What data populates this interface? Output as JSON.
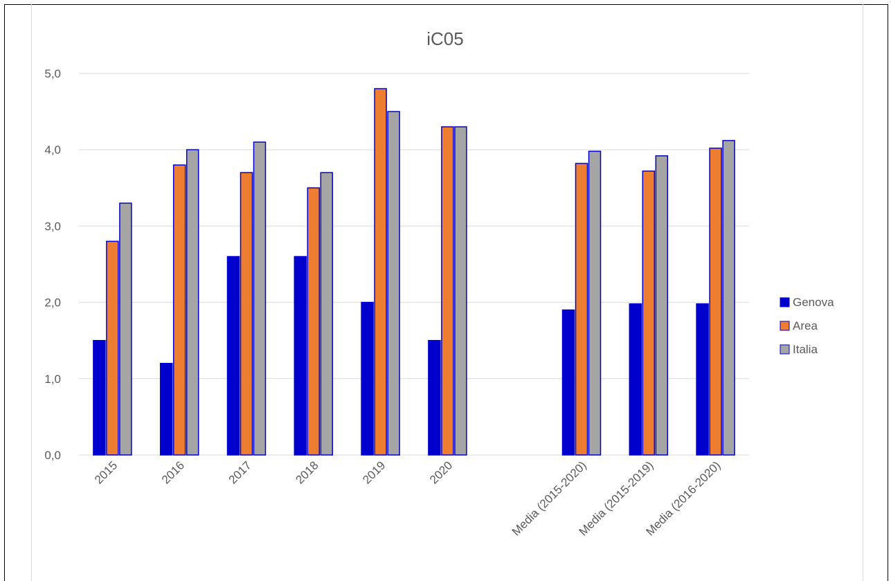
{
  "chart_data": {
    "type": "bar",
    "title": "iC05",
    "xlabel": "",
    "ylabel": "",
    "ylim": [
      0,
      5
    ],
    "yticks": [
      "0,0",
      "1,0",
      "2,0",
      "3,0",
      "4,0",
      "5,0"
    ],
    "grid": true,
    "legend_position": "right",
    "categories": [
      "2015",
      "2016",
      "2017",
      "2018",
      "2019",
      "2020",
      "",
      "Media (2015-2020)",
      "Media (2015-2019)",
      "Media (2016-2020)"
    ],
    "series": [
      {
        "name": "Genova",
        "color": "#0000cc",
        "values": [
          1.5,
          1.2,
          2.6,
          2.6,
          2.0,
          1.5,
          null,
          1.9,
          1.98,
          1.98
        ]
      },
      {
        "name": "Area",
        "color": "#ed7d31",
        "values": [
          2.8,
          3.8,
          3.7,
          3.5,
          4.8,
          4.3,
          null,
          3.82,
          3.72,
          4.02
        ]
      },
      {
        "name": "Italia",
        "color": "#a5a5a5",
        "values": [
          3.3,
          4.0,
          4.1,
          3.7,
          4.5,
          4.3,
          null,
          3.98,
          3.92,
          4.12
        ]
      }
    ],
    "bar_outline_color": "#0000cc"
  }
}
